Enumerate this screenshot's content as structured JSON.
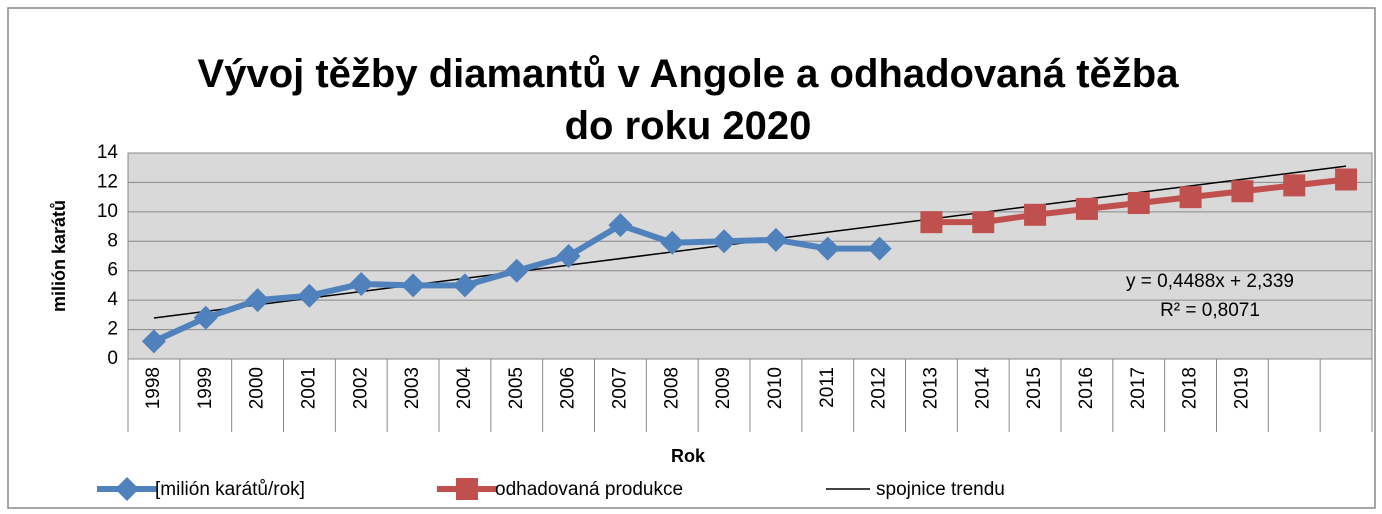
{
  "chart_data": {
    "type": "line",
    "title": "Vývoj těžby diamantů v Angole a odhadovaná těžba do roku 2020",
    "x_label": "Rok",
    "y_label": "milión karátů",
    "categories": [
      "1998",
      "1999",
      "2000",
      "2001",
      "2002",
      "2003",
      "2004",
      "2005",
      "2006",
      "2007",
      "2008",
      "2009",
      "2010",
      "2011",
      "2012",
      "2013",
      "2014",
      "2015",
      "2016",
      "2017",
      "2018",
      "2019",
      null,
      null
    ],
    "series": [
      {
        "name": "[milión karátů/rok]",
        "color": "#4f81bd",
        "marker": "diamond",
        "values": [
          1.2,
          2.8,
          4.0,
          4.3,
          5.1,
          5.0,
          5.0,
          6.0,
          7.0,
          9.1,
          7.9,
          8.0,
          8.1,
          7.5,
          7.5,
          null,
          null,
          null,
          null,
          null,
          null,
          null,
          null,
          null
        ]
      },
      {
        "name": "odhadovaná produkce",
        "color": "#c0504d",
        "marker": "square",
        "values": [
          null,
          null,
          null,
          null,
          null,
          null,
          null,
          null,
          null,
          null,
          null,
          null,
          null,
          null,
          null,
          9.3,
          9.3,
          9.8,
          10.2,
          10.6,
          11.0,
          11.4,
          11.8,
          12.2
        ]
      }
    ],
    "trendline": {
      "name": "spojnice trendu",
      "color": "#000000",
      "slope": 0.4488,
      "intercept": 2.339,
      "equation": "y = 0,4488x + 2,339",
      "r_squared": "R² = 0,8071"
    },
    "ylim": [
      0,
      14
    ],
    "yticks": [
      0,
      2,
      4,
      6,
      8,
      10,
      12,
      14
    ],
    "grid": true,
    "legend": "bottom"
  }
}
